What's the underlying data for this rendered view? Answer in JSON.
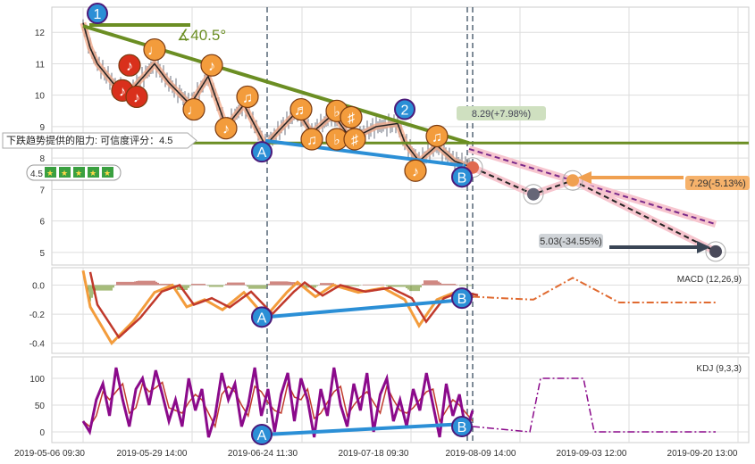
{
  "chart_data": {
    "type": "line",
    "title": "",
    "x_tick_labels": [
      {
        "bar": 0,
        "label": "2019-05-06 09:30"
      },
      {
        "bar": 20,
        "label": "2019-05-29 14:00"
      },
      {
        "bar": 51,
        "label": "2019-06-24 11:30"
      },
      {
        "bar": 82,
        "label": "2019-07-18 09:30"
      },
      {
        "bar": 112,
        "label": "2019-08-09 14:00"
      },
      {
        "bar": 143,
        "label": "2019-09-03 12:00"
      },
      {
        "bar": 174,
        "label": "2019-09-20 13:00"
      }
    ],
    "price": {
      "yticks": [
        5,
        6,
        7,
        8,
        9,
        10,
        11,
        12
      ],
      "ylim": [
        4.6,
        12.8
      ],
      "series": [
        [
          0,
          12.3
        ],
        [
          2,
          11.5
        ],
        [
          4,
          11.0
        ],
        [
          9,
          10.3
        ],
        [
          13,
          10.1
        ],
        [
          17,
          10.6
        ],
        [
          20,
          11.0
        ],
        [
          24,
          10.4
        ],
        [
          30,
          9.7
        ],
        [
          35,
          10.6
        ],
        [
          40,
          9.0
        ],
        [
          45,
          9.7
        ],
        [
          51,
          8.4
        ],
        [
          55,
          8.9
        ],
        [
          60,
          9.5
        ],
        [
          64,
          8.8
        ],
        [
          70,
          9.4
        ],
        [
          75,
          8.6
        ],
        [
          82,
          9.0
        ],
        [
          88,
          9.1
        ],
        [
          90,
          8.5
        ],
        [
          94,
          7.9
        ],
        [
          99,
          8.4
        ],
        [
          104,
          7.9
        ],
        [
          109,
          7.7
        ]
      ],
      "resistance_level": 8.48,
      "trend_line": [
        [
          0,
          12.2
        ],
        [
          108,
          8.48
        ]
      ],
      "support_line_AB": [
        [
          51,
          8.55
        ],
        [
          107,
          7.75
        ]
      ],
      "angle_label": "∡40.5°",
      "forecast_paths": [
        {
          "name": "target-high",
          "points": [
            [
              108,
              8.29
            ],
            [
              177,
              5.9
            ]
          ]
        },
        {
          "name": "target-path",
          "points": [
            [
              109,
              7.7
            ],
            [
              126,
              6.85
            ],
            [
              137,
              7.29
            ],
            [
              177,
              5.03
            ]
          ]
        }
      ],
      "annotations": {
        "upper": "8.29(+7.98%)",
        "mid": "7.29(-5.13%)",
        "low": "5.03(-34.55%)",
        "resistance_note": "下跌趋势提供的阻力: 可信度评分：4.5",
        "rating": "4.5"
      },
      "markers": [
        {
          "label": "1",
          "bar": 4,
          "price": 12.6
        },
        {
          "label": "2",
          "bar": 90,
          "price": 9.55
        },
        {
          "label": "A",
          "bar": 50,
          "price": 8.2
        },
        {
          "label": "B",
          "bar": 106,
          "price": 7.4
        }
      ],
      "notes": [
        {
          "glyph": "♪",
          "bar": 13,
          "price": 10.95,
          "color": "red"
        },
        {
          "glyph": "♪",
          "bar": 11,
          "price": 10.15,
          "color": "red"
        },
        {
          "glyph": "♪",
          "bar": 15,
          "price": 9.95,
          "color": "red"
        },
        {
          "glyph": "♩",
          "bar": 20,
          "price": 11.45,
          "color": "orange"
        },
        {
          "glyph": "♪",
          "bar": 36,
          "price": 10.95,
          "color": "orange"
        },
        {
          "glyph": "♩",
          "bar": 31,
          "price": 9.55,
          "color": "orange"
        },
        {
          "glyph": "♫",
          "bar": 46,
          "price": 9.95,
          "color": "orange"
        },
        {
          "glyph": "♪",
          "bar": 40,
          "price": 8.95,
          "color": "orange"
        },
        {
          "glyph": "♬",
          "bar": 61,
          "price": 9.55,
          "color": "orange"
        },
        {
          "glyph": "♫",
          "bar": 64,
          "price": 8.6,
          "color": "orange"
        },
        {
          "glyph": "♭",
          "bar": 71,
          "price": 9.5,
          "color": "orange"
        },
        {
          "glyph": "♯",
          "bar": 75,
          "price": 9.3,
          "color": "orange"
        },
        {
          "glyph": "♭",
          "bar": 71,
          "price": 8.6,
          "color": "orange"
        },
        {
          "glyph": "♯",
          "bar": 76,
          "price": 8.6,
          "color": "orange"
        },
        {
          "glyph": "♫",
          "bar": 99,
          "price": 8.7,
          "color": "orange"
        },
        {
          "glyph": "♪",
          "bar": 93,
          "price": 7.6,
          "color": "orange"
        }
      ]
    },
    "macd": {
      "label": "MACD (12,26,9)",
      "yticks": [
        0.0,
        -0.2,
        -0.4
      ],
      "ylim": [
        -0.47,
        0.12
      ],
      "dif": [
        [
          0,
          0.1
        ],
        [
          2,
          -0.15
        ],
        [
          8,
          -0.4
        ],
        [
          14,
          -0.25
        ],
        [
          20,
          -0.05
        ],
        [
          25,
          0.0
        ],
        [
          29,
          -0.15
        ],
        [
          34,
          -0.1
        ],
        [
          39,
          -0.17
        ],
        [
          45,
          -0.05
        ],
        [
          51,
          -0.22
        ],
        [
          57,
          -0.05
        ],
        [
          60,
          0.02
        ],
        [
          65,
          -0.08
        ],
        [
          70,
          0.0
        ],
        [
          77,
          -0.05
        ],
        [
          84,
          -0.02
        ],
        [
          90,
          -0.1
        ],
        [
          94,
          -0.28
        ],
        [
          99,
          -0.1
        ],
        [
          104,
          -0.05
        ],
        [
          109,
          -0.08
        ]
      ],
      "forecast": [
        [
          109,
          -0.08
        ],
        [
          126,
          -0.1
        ],
        [
          137,
          0.05
        ],
        [
          150,
          -0.12
        ],
        [
          177,
          -0.12
        ]
      ],
      "AB_line": [
        [
          51,
          -0.22
        ],
        [
          107,
          -0.1
        ]
      ],
      "markers": [
        {
          "label": "A",
          "bar": 50,
          "value": -0.22
        },
        {
          "label": "B",
          "bar": 106,
          "value": -0.09
        }
      ]
    },
    "kdj": {
      "label": "KDJ (9,3,3)",
      "yticks": [
        0,
        50,
        100
      ],
      "ylim": [
        -20,
        140
      ],
      "j": [
        20,
        0,
        60,
        90,
        30,
        120,
        60,
        10,
        80,
        100,
        50,
        115,
        70,
        20,
        60,
        10,
        100,
        40,
        80,
        -10,
        30,
        110,
        60,
        90,
        10,
        50,
        120,
        30,
        80,
        0,
        70,
        110,
        20,
        100,
        60,
        -10,
        80,
        30,
        120,
        50,
        10,
        90,
        40,
        110,
        0,
        70,
        100,
        20,
        60,
        10,
        80,
        40,
        110,
        50,
        -10,
        90,
        30,
        70,
        0,
        40
      ],
      "forecast": [
        [
          109,
          10
        ],
        [
          125,
          0
        ],
        [
          128,
          100
        ],
        [
          140,
          100
        ],
        [
          143,
          0
        ],
        [
          177,
          0
        ]
      ],
      "AB_line": [
        [
          51,
          -5
        ],
        [
          107,
          15
        ]
      ],
      "markers": [
        {
          "label": "A",
          "bar": 50,
          "value": -5
        },
        {
          "label": "B",
          "bar": 106,
          "value": 10
        }
      ]
    }
  }
}
